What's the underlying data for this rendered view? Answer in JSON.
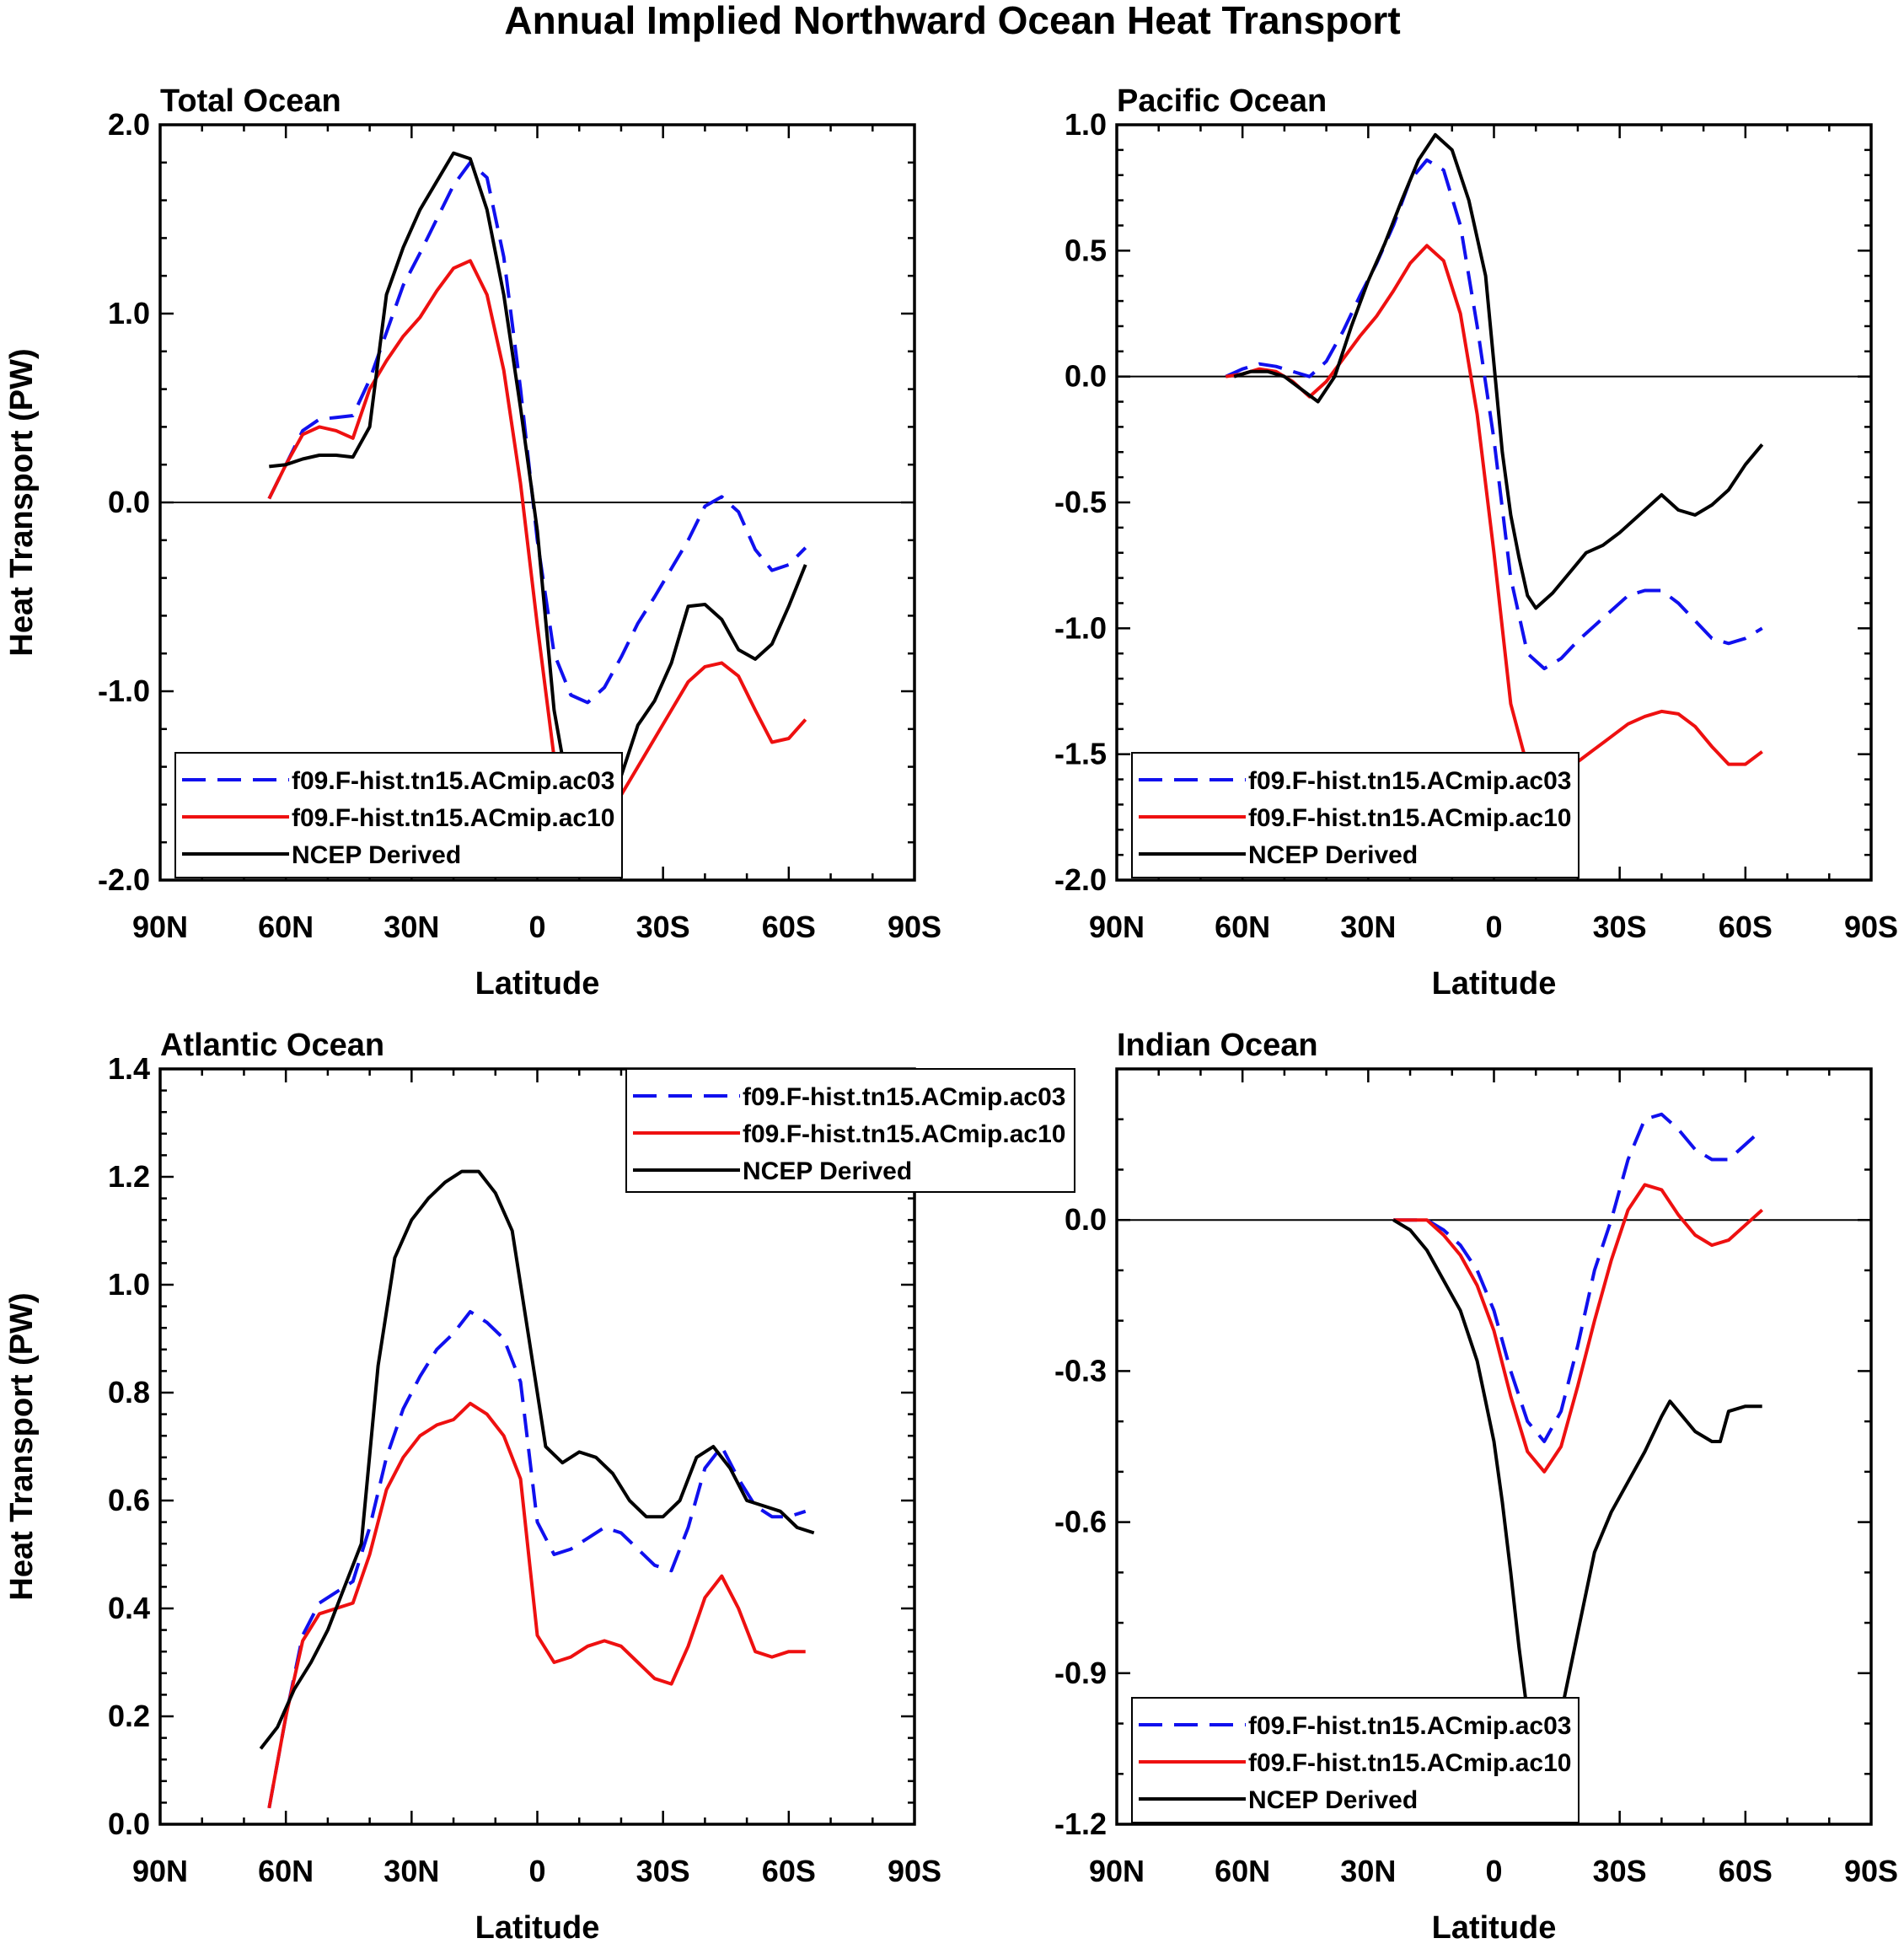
{
  "title": "Annual Implied Northward Ocean Heat Transport",
  "xlabel": "Latitude",
  "ylabel": "Heat Transport (PW)",
  "xticks": [
    "90N",
    "60N",
    "30N",
    "0",
    "30S",
    "60S",
    "90S"
  ],
  "series_styles": [
    {
      "name": "f09.F-hist.tn15.ACmip.ac03",
      "color": "#1010ee",
      "dash": "dashed"
    },
    {
      "name": "f09.F-hist.tn15.ACmip.ac10",
      "color": "#ee1010",
      "dash": "solid"
    },
    {
      "name": "NCEP Derived",
      "color": "#000000",
      "dash": "solid"
    }
  ],
  "chart_data": [
    {
      "type": "line",
      "title": "Total Ocean",
      "xlabel": "Latitude",
      "ylabel": "Heat Transport (PW)",
      "xlim": [
        -90,
        90
      ],
      "ylim": [
        -2.0,
        2.0
      ],
      "yticks": [
        -2.0,
        -1.0,
        0.0,
        1.0,
        2.0
      ],
      "ytick_labels": [
        "-2.0",
        "-1.0",
        "0.0",
        "1.0",
        "2.0"
      ],
      "legend": "bottom-left",
      "series": [
        {
          "name": "f09.F-hist.tn15.ACmip.ac03",
          "x": [
            -64,
            -60,
            -56,
            -52,
            -48,
            -44,
            -40,
            -36,
            -32,
            -28,
            -24,
            -20,
            -16,
            -12,
            -8,
            -4,
            0,
            4,
            8,
            12,
            16,
            20,
            24,
            28,
            32,
            36,
            40,
            44,
            48,
            52,
            56,
            60,
            64
          ],
          "y": [
            0.02,
            0.2,
            0.38,
            0.44,
            0.45,
            0.46,
            0.65,
            0.9,
            1.15,
            1.32,
            1.5,
            1.68,
            1.8,
            1.72,
            1.3,
            0.6,
            -0.2,
            -0.8,
            -1.02,
            -1.06,
            -0.98,
            -0.82,
            -0.64,
            -0.5,
            -0.35,
            -0.2,
            -0.02,
            0.03,
            -0.05,
            -0.25,
            -0.36,
            -0.33,
            -0.24
          ]
        },
        {
          "name": "f09.F-hist.tn15.ACmip.ac10",
          "x": [
            -64,
            -60,
            -56,
            -52,
            -48,
            -44,
            -40,
            -36,
            -32,
            -28,
            -24,
            -20,
            -16,
            -12,
            -8,
            -4,
            0,
            4,
            8,
            12,
            16,
            20,
            24,
            28,
            32,
            36,
            40,
            44,
            48,
            52,
            56,
            60,
            64
          ],
          "y": [
            0.02,
            0.2,
            0.36,
            0.4,
            0.38,
            0.34,
            0.6,
            0.75,
            0.88,
            0.98,
            1.12,
            1.24,
            1.28,
            1.1,
            0.7,
            0.1,
            -0.65,
            -1.35,
            -1.72,
            -1.8,
            -1.7,
            -1.55,
            -1.4,
            -1.25,
            -1.1,
            -0.95,
            -0.87,
            -0.85,
            -0.92,
            -1.1,
            -1.27,
            -1.25,
            -1.15
          ]
        },
        {
          "name": "NCEP Derived",
          "x": [
            -64,
            -60,
            -56,
            -52,
            -48,
            -44,
            -40,
            -36,
            -32,
            -28,
            -24,
            -20,
            -16,
            -12,
            -8,
            -4,
            0,
            4,
            8,
            12,
            16,
            20,
            24,
            28,
            32,
            36,
            40,
            44,
            48,
            52,
            56,
            60,
            64
          ],
          "y": [
            0.19,
            0.2,
            0.23,
            0.25,
            0.25,
            0.24,
            0.4,
            1.1,
            1.35,
            1.55,
            1.7,
            1.85,
            1.82,
            1.55,
            1.1,
            0.5,
            -0.15,
            -1.1,
            -1.6,
            -1.7,
            -1.66,
            -1.45,
            -1.18,
            -1.05,
            -0.85,
            -0.55,
            -0.54,
            -0.62,
            -0.78,
            -0.83,
            -0.75,
            -0.55,
            -0.33
          ]
        }
      ]
    },
    {
      "type": "line",
      "title": "Pacific Ocean",
      "xlabel": "Latitude",
      "ylabel": "",
      "xlim": [
        -90,
        90
      ],
      "ylim": [
        -2.0,
        1.0
      ],
      "yticks": [
        -2.0,
        -1.5,
        -1.0,
        -0.5,
        0.0,
        0.5,
        1.0
      ],
      "ytick_labels": [
        "-2.0",
        "-1.5",
        "-1.0",
        "-0.5",
        "0.0",
        "0.5",
        "1.0"
      ],
      "legend": "bottom-left",
      "series": [
        {
          "name": "f09.F-hist.tn15.ACmip.ac03",
          "x": [
            -64,
            -60,
            -56,
            -52,
            -48,
            -44,
            -40,
            -36,
            -32,
            -28,
            -24,
            -20,
            -16,
            -12,
            -8,
            -4,
            0,
            4,
            8,
            12,
            16,
            20,
            24,
            28,
            32,
            36,
            40,
            44,
            48,
            52,
            56,
            60,
            64
          ],
          "y": [
            0.0,
            0.03,
            0.05,
            0.04,
            0.02,
            0.0,
            0.06,
            0.18,
            0.32,
            0.45,
            0.6,
            0.78,
            0.86,
            0.82,
            0.6,
            0.2,
            -0.25,
            -0.8,
            -1.1,
            -1.16,
            -1.12,
            -1.05,
            -0.99,
            -0.93,
            -0.87,
            -0.85,
            -0.85,
            -0.9,
            -0.97,
            -1.04,
            -1.06,
            -1.04,
            -1.0
          ]
        },
        {
          "name": "f09.F-hist.tn15.ACmip.ac10",
          "x": [
            -64,
            -60,
            -56,
            -52,
            -48,
            -44,
            -40,
            -36,
            -32,
            -28,
            -24,
            -20,
            -16,
            -12,
            -8,
            -4,
            0,
            4,
            8,
            12,
            16,
            20,
            24,
            28,
            32,
            36,
            40,
            44,
            48,
            52,
            56,
            60,
            64
          ],
          "y": [
            0.0,
            0.01,
            0.03,
            0.02,
            -0.02,
            -0.08,
            -0.02,
            0.07,
            0.16,
            0.24,
            0.34,
            0.45,
            0.52,
            0.46,
            0.25,
            -0.15,
            -0.7,
            -1.3,
            -1.55,
            -1.62,
            -1.58,
            -1.53,
            -1.48,
            -1.43,
            -1.38,
            -1.35,
            -1.33,
            -1.34,
            -1.39,
            -1.47,
            -1.54,
            -1.54,
            -1.49
          ]
        },
        {
          "name": "NCEP Derived",
          "x": [
            -62,
            -58,
            -54,
            -50,
            -46,
            -42,
            -38,
            -34,
            -30,
            -26,
            -22,
            -18,
            -14,
            -10,
            -6,
            -2,
            2,
            4,
            6,
            8,
            10,
            14,
            18,
            22,
            26,
            30,
            34,
            38,
            40,
            44,
            48,
            52,
            56,
            60,
            64
          ],
          "y": [
            0.0,
            0.02,
            0.02,
            0.0,
            -0.05,
            -0.1,
            0.0,
            0.2,
            0.38,
            0.53,
            0.7,
            0.86,
            0.96,
            0.9,
            0.7,
            0.4,
            -0.3,
            -0.55,
            -0.72,
            -0.87,
            -0.92,
            -0.86,
            -0.78,
            -0.7,
            -0.67,
            -0.62,
            -0.56,
            -0.5,
            -0.47,
            -0.53,
            -0.55,
            -0.51,
            -0.45,
            -0.35,
            -0.27
          ]
        }
      ]
    },
    {
      "type": "line",
      "title": "Atlantic Ocean",
      "xlabel": "Latitude",
      "ylabel": "Heat Transport (PW)",
      "xlim": [
        -90,
        90
      ],
      "ylim": [
        0.0,
        1.4
      ],
      "yticks": [
        0.0,
        0.2,
        0.4,
        0.6,
        0.8,
        1.0,
        1.2,
        1.4
      ],
      "ytick_labels": [
        "0.0",
        "0.2",
        "0.4",
        "0.6",
        "0.8",
        "1.0",
        "1.2",
        "1.4"
      ],
      "legend": "top-right",
      "series": [
        {
          "name": "f09.F-hist.tn15.ACmip.ac03",
          "x": [
            -64,
            -60,
            -56,
            -52,
            -48,
            -44,
            -40,
            -36,
            -32,
            -28,
            -24,
            -20,
            -16,
            -12,
            -8,
            -4,
            0,
            4,
            8,
            12,
            16,
            20,
            24,
            28,
            32,
            36,
            40,
            44,
            48,
            52,
            56,
            60,
            64
          ],
          "y": [
            0.03,
            0.2,
            0.35,
            0.41,
            0.43,
            0.45,
            0.55,
            0.68,
            0.77,
            0.83,
            0.88,
            0.91,
            0.95,
            0.93,
            0.9,
            0.82,
            0.56,
            0.5,
            0.51,
            0.53,
            0.55,
            0.54,
            0.51,
            0.48,
            0.47,
            0.55,
            0.66,
            0.7,
            0.64,
            0.59,
            0.57,
            0.57,
            0.58
          ]
        },
        {
          "name": "f09.F-hist.tn15.ACmip.ac10",
          "x": [
            -64,
            -60,
            -56,
            -52,
            -48,
            -44,
            -40,
            -36,
            -32,
            -28,
            -24,
            -20,
            -16,
            -12,
            -8,
            -4,
            0,
            4,
            8,
            12,
            16,
            20,
            24,
            28,
            32,
            36,
            40,
            44,
            48,
            52,
            56,
            60,
            64
          ],
          "y": [
            0.03,
            0.2,
            0.34,
            0.39,
            0.4,
            0.41,
            0.5,
            0.62,
            0.68,
            0.72,
            0.74,
            0.75,
            0.78,
            0.76,
            0.72,
            0.64,
            0.35,
            0.3,
            0.31,
            0.33,
            0.34,
            0.33,
            0.3,
            0.27,
            0.26,
            0.33,
            0.42,
            0.46,
            0.4,
            0.32,
            0.31,
            0.32,
            0.32
          ]
        },
        {
          "name": "NCEP Derived",
          "x": [
            -66,
            -62,
            -58,
            -54,
            -50,
            -46,
            -42,
            -38,
            -34,
            -30,
            -26,
            -22,
            -18,
            -14,
            -10,
            -6,
            -2,
            2,
            6,
            10,
            14,
            18,
            22,
            26,
            30,
            34,
            38,
            42,
            46,
            50,
            54,
            58,
            62,
            66
          ],
          "y": [
            0.14,
            0.18,
            0.25,
            0.3,
            0.36,
            0.44,
            0.52,
            0.85,
            1.05,
            1.12,
            1.16,
            1.19,
            1.21,
            1.21,
            1.17,
            1.1,
            0.9,
            0.7,
            0.67,
            0.69,
            0.68,
            0.65,
            0.6,
            0.57,
            0.57,
            0.6,
            0.68,
            0.7,
            0.66,
            0.6,
            0.59,
            0.58,
            0.55,
            0.54
          ]
        }
      ]
    },
    {
      "type": "line",
      "title": "Indian Ocean",
      "xlabel": "Latitude",
      "ylabel": "",
      "xlim": [
        -90,
        90
      ],
      "ylim": [
        -1.2,
        0.3
      ],
      "yticks": [
        -1.2,
        -0.9,
        -0.6,
        -0.3,
        0.0
      ],
      "ytick_labels": [
        "-1.2",
        "-0.9",
        "-0.6",
        "-0.3",
        "0.0"
      ],
      "legend": "bottom-left",
      "series": [
        {
          "name": "f09.F-hist.tn15.ACmip.ac03",
          "x": [
            -24,
            -20,
            -16,
            -12,
            -8,
            -4,
            0,
            4,
            8,
            12,
            16,
            20,
            24,
            28,
            32,
            36,
            40,
            44,
            48,
            52,
            56,
            60,
            64
          ],
          "y": [
            0.0,
            0.0,
            0.0,
            -0.02,
            -0.05,
            -0.1,
            -0.18,
            -0.3,
            -0.4,
            -0.44,
            -0.38,
            -0.25,
            -0.1,
            0.0,
            0.12,
            0.2,
            0.21,
            0.18,
            0.14,
            0.12,
            0.12,
            0.15,
            0.18
          ]
        },
        {
          "name": "f09.F-hist.tn15.ACmip.ac10",
          "x": [
            -24,
            -20,
            -16,
            -12,
            -8,
            -4,
            0,
            4,
            8,
            12,
            16,
            20,
            24,
            28,
            32,
            36,
            40,
            44,
            48,
            52,
            56,
            60,
            64
          ],
          "y": [
            0.0,
            0.0,
            0.0,
            -0.03,
            -0.07,
            -0.13,
            -0.22,
            -0.35,
            -0.46,
            -0.5,
            -0.45,
            -0.33,
            -0.2,
            -0.08,
            0.02,
            0.07,
            0.06,
            0.01,
            -0.03,
            -0.05,
            -0.04,
            -0.01,
            0.02
          ]
        },
        {
          "name": "NCEP Derived",
          "x": [
            -24,
            -20,
            -16,
            -12,
            -8,
            -4,
            -2,
            0,
            2,
            4,
            6,
            8,
            10,
            12,
            14,
            16,
            18,
            20,
            24,
            28,
            32,
            36,
            40,
            42,
            44,
            48,
            52,
            54,
            56,
            60,
            64
          ],
          "y": [
            0.0,
            -0.02,
            -0.06,
            -0.12,
            -0.18,
            -0.28,
            -0.36,
            -0.44,
            -0.56,
            -0.7,
            -0.85,
            -0.98,
            -1.04,
            -1.06,
            -1.04,
            -0.98,
            -0.9,
            -0.82,
            -0.66,
            -0.58,
            -0.52,
            -0.46,
            -0.39,
            -0.36,
            -0.38,
            -0.42,
            -0.44,
            -0.44,
            -0.38,
            -0.37,
            -0.37
          ]
        }
      ]
    }
  ]
}
